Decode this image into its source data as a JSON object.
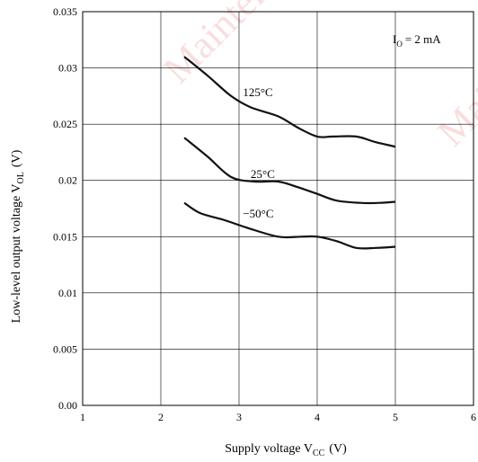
{
  "watermark": "Maintenance",
  "chart_data": {
    "type": "line",
    "title": "",
    "xlabel": "Supply voltage  V",
    "xlabel_sub": "CC",
    "xlabel_unit": "(V)",
    "ylabel": "Low-level output voltage  V",
    "ylabel_sub": "OL",
    "ylabel_unit": "(V)",
    "xlim": [
      1,
      6
    ],
    "ylim": [
      0,
      0.035
    ],
    "x_ticks": [
      "1",
      "2",
      "3",
      "4",
      "5",
      "6"
    ],
    "y_ticks": [
      "0.00",
      "0.005",
      "0.01",
      "0.015",
      "0.02",
      "0.025",
      "0.03",
      "0.035"
    ],
    "grid": true,
    "condition_label": "I",
    "condition_sub": "O",
    "condition_value": "= 2 mA",
    "series": [
      {
        "name": "125°C",
        "x": [
          2.3,
          2.6,
          2.9,
          3.15,
          3.5,
          3.75,
          4.0,
          4.2,
          4.5,
          4.75,
          5.0
        ],
        "y": [
          0.031,
          0.0293,
          0.0275,
          0.0265,
          0.0257,
          0.0247,
          0.0239,
          0.0239,
          0.0239,
          0.0234,
          0.023
        ]
      },
      {
        "name": "25°C",
        "x": [
          2.3,
          2.6,
          2.9,
          3.2,
          3.5,
          3.75,
          4.0,
          4.25,
          4.55,
          4.8,
          5.0
        ],
        "y": [
          0.0238,
          0.0221,
          0.0203,
          0.0199,
          0.0199,
          0.0194,
          0.0188,
          0.0182,
          0.018,
          0.018,
          0.0181
        ]
      },
      {
        "name": "−50°C",
        "x": [
          2.3,
          2.5,
          2.8,
          3.1,
          3.5,
          3.8,
          4.0,
          4.25,
          4.5,
          4.75,
          5.0
        ],
        "y": [
          0.018,
          0.0171,
          0.0165,
          0.0158,
          0.015,
          0.015,
          0.015,
          0.0146,
          0.014,
          0.014,
          0.0141
        ]
      }
    ],
    "series_label_positions": [
      {
        "x": 3.05,
        "y": 0.0275
      },
      {
        "x": 3.15,
        "y": 0.0202
      },
      {
        "x": 3.05,
        "y": 0.0167
      }
    ]
  }
}
